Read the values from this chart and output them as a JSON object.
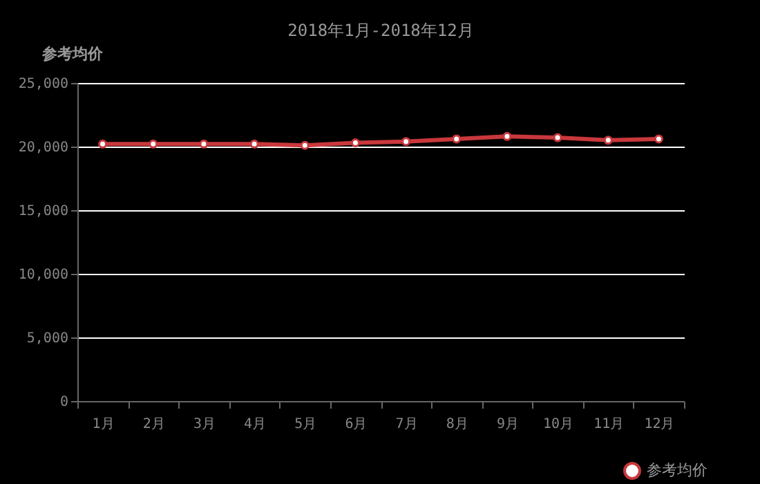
{
  "chart_data": {
    "type": "line",
    "title": "2018年1月-2018年12月",
    "ylabel": "参考均价",
    "categories": [
      "1月",
      "2月",
      "3月",
      "4月",
      "5月",
      "6月",
      "7月",
      "8月",
      "9月",
      "10月",
      "11月",
      "12月"
    ],
    "series": [
      {
        "name": "参考均价",
        "color": "#c8383c",
        "values": [
          20200,
          20200,
          20200,
          20200,
          20100,
          20300,
          20400,
          20600,
          20800,
          20700,
          20500,
          20600
        ]
      }
    ],
    "ylim": [
      0,
      25000
    ],
    "yticks": [
      {
        "value": 0,
        "label": "0"
      },
      {
        "value": 5000,
        "label": "5,000"
      },
      {
        "value": 10000,
        "label": "10,000"
      },
      {
        "value": 15000,
        "label": "15,000"
      },
      {
        "value": 20000,
        "label": "20,000"
      },
      {
        "value": 25000,
        "label": "25,000"
      }
    ],
    "grid": "y",
    "legend": "bottom right",
    "marker": "circle",
    "line_style": "solid"
  }
}
